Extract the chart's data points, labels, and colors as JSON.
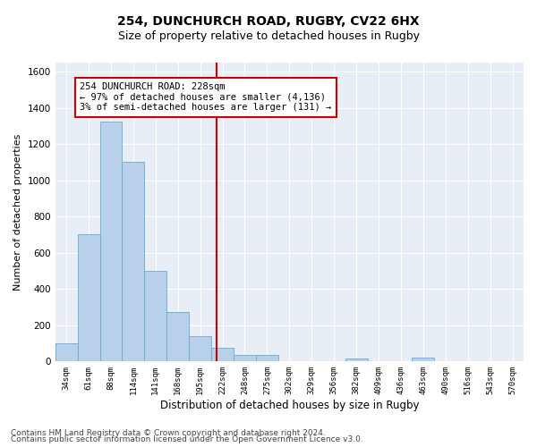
{
  "title1": "254, DUNCHURCH ROAD, RUGBY, CV22 6HX",
  "title2": "Size of property relative to detached houses in Rugby",
  "xlabel": "Distribution of detached houses by size in Rugby",
  "ylabel": "Number of detached properties",
  "footer1": "Contains HM Land Registry data © Crown copyright and database right 2024.",
  "footer2": "Contains public sector information licensed under the Open Government Licence v3.0.",
  "bin_labels": [
    "34sqm",
    "61sqm",
    "88sqm",
    "114sqm",
    "141sqm",
    "168sqm",
    "195sqm",
    "222sqm",
    "248sqm",
    "275sqm",
    "302sqm",
    "329sqm",
    "356sqm",
    "382sqm",
    "409sqm",
    "436sqm",
    "463sqm",
    "490sqm",
    "516sqm",
    "543sqm",
    "570sqm"
  ],
  "bar_heights": [
    100,
    700,
    1325,
    1100,
    500,
    275,
    140,
    75,
    35,
    35,
    0,
    0,
    0,
    15,
    0,
    0,
    20,
    0,
    0,
    0,
    0
  ],
  "bar_color": "#b8d0ea",
  "bar_edge_color": "#6aaad4",
  "vline_x": 7.22,
  "vline_color": "#cc0000",
  "annotation_text": "254 DUNCHURCH ROAD: 228sqm\n← 97% of detached houses are smaller (4,136)\n3% of semi-detached houses are larger (131) →",
  "annotation_box_color": "#cc0000",
  "ylim": [
    0,
    1650
  ],
  "yticks": [
    0,
    200,
    400,
    600,
    800,
    1000,
    1200,
    1400,
    1600
  ],
  "bg_color": "#e8eef5",
  "grid_color": "#ffffff",
  "title1_fontsize": 10,
  "title2_fontsize": 9,
  "footer_fontsize": 6.5,
  "annot_fontsize": 7.5,
  "ylabel_fontsize": 8,
  "xlabel_fontsize": 8.5
}
